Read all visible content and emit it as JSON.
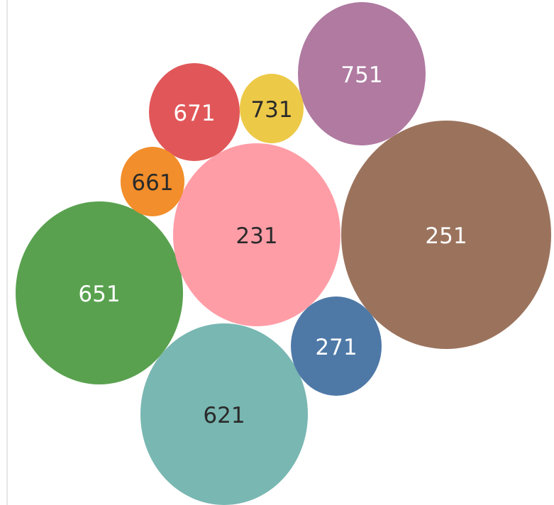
{
  "chart_data": {
    "type": "bubble",
    "title": "",
    "legend": "none",
    "bubbles": [
      {
        "label": "251",
        "color": "#9b735d",
        "size": 1.0
      },
      {
        "label": "651",
        "color": "#59a14f",
        "size": 0.574
      },
      {
        "label": "231",
        "color": "#ff9da7",
        "size": 0.574
      },
      {
        "label": "621",
        "color": "#79b7b2",
        "size": 0.551
      },
      {
        "label": "751",
        "color": "#b07aa1",
        "size": 0.311
      },
      {
        "label": "671",
        "color": "#e15759",
        "size": 0.186
      },
      {
        "label": "271",
        "color": "#4e79a7",
        "size": 0.152
      },
      {
        "label": "731",
        "color": "#edc948",
        "size": 0.075
      },
      {
        "label": "661",
        "color": "#f28e2b",
        "size": 0.087
      }
    ]
  }
}
